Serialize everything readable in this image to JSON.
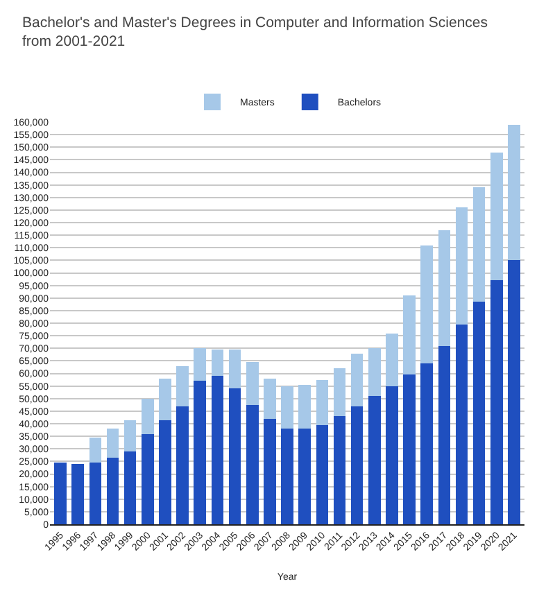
{
  "chart_data": {
    "type": "bar",
    "stacked": true,
    "title": "Bachelor's and Master's Degrees in Computer and Information Sciences from 2001-2021",
    "xlabel": "Year",
    "categories": [
      "1995",
      "1996",
      "1997",
      "1998",
      "1999",
      "2000",
      "2001",
      "2002",
      "2003",
      "2004",
      "2005",
      "2006",
      "2007",
      "2008",
      "2009",
      "2010",
      "2011",
      "2012",
      "2013",
      "2014",
      "2015",
      "2016",
      "2017",
      "2018",
      "2019",
      "2020",
      "2021"
    ],
    "series": [
      {
        "name": "Bachelors",
        "color": "#1f4fbf",
        "values": [
          24500,
          24000,
          24500,
          26500,
          29000,
          36000,
          41500,
          47000,
          57000,
          59000,
          54000,
          47500,
          42000,
          38000,
          38000,
          39500,
          43000,
          47000,
          51000,
          55000,
          59500,
          64000,
          71000,
          79500,
          88500,
          97000,
          105000
        ]
      },
      {
        "name": "Masters",
        "color": "#a6c8e8",
        "values": [
          null,
          null,
          10000,
          11500,
          12500,
          14000,
          16500,
          16000,
          13000,
          10500,
          15500,
          17000,
          16000,
          17000,
          17500,
          18000,
          19000,
          21000,
          19000,
          21000,
          31500,
          47000,
          46000,
          46500,
          45500,
          51000,
          54000
        ]
      }
    ],
    "ylim": [
      0,
      160000
    ],
    "yticks": [
      {
        "value": 0,
        "label": "0"
      },
      {
        "value": 5000,
        "label": "5,000"
      },
      {
        "value": 10000,
        "label": "10,000"
      },
      {
        "value": 15000,
        "label": "15,000"
      },
      {
        "value": 20000,
        "label": "20,000"
      },
      {
        "value": 25000,
        "label": "25,000"
      },
      {
        "value": 30000,
        "label": "30,000"
      },
      {
        "value": 35000,
        "label": "35,000"
      },
      {
        "value": 40000,
        "label": "40,000"
      },
      {
        "value": 45000,
        "label": "45,000"
      },
      {
        "value": 50000,
        "label": "50,000"
      },
      {
        "value": 55000,
        "label": "55,000"
      },
      {
        "value": 60000,
        "label": "60,000"
      },
      {
        "value": 65000,
        "label": "65,000"
      },
      {
        "value": 70000,
        "label": "70,000"
      },
      {
        "value": 75000,
        "label": "75,000"
      },
      {
        "value": 80000,
        "label": "80,000"
      },
      {
        "value": 85000,
        "label": "85,000"
      },
      {
        "value": 90000,
        "label": "90,000"
      },
      {
        "value": 95000,
        "label": "95,000"
      },
      {
        "value": 100000,
        "label": "100,000"
      },
      {
        "value": 105000,
        "label": "105,000"
      },
      {
        "value": 110000,
        "label": "110,000"
      },
      {
        "value": 115000,
        "label": "115,000"
      },
      {
        "value": 120000,
        "label": "120,000"
      },
      {
        "value": 125000,
        "label": "125,000"
      },
      {
        "value": 130000,
        "label": "130,000"
      },
      {
        "value": 135000,
        "label": "135,000"
      },
      {
        "value": 140000,
        "label": "140,000"
      },
      {
        "value": 145000,
        "label": "145,000"
      },
      {
        "value": 150000,
        "label": "150,000"
      },
      {
        "value": 155000,
        "label": "155,000"
      },
      {
        "value": 160000,
        "label": "160,000"
      }
    ],
    "grid": "y",
    "legend": "top"
  }
}
